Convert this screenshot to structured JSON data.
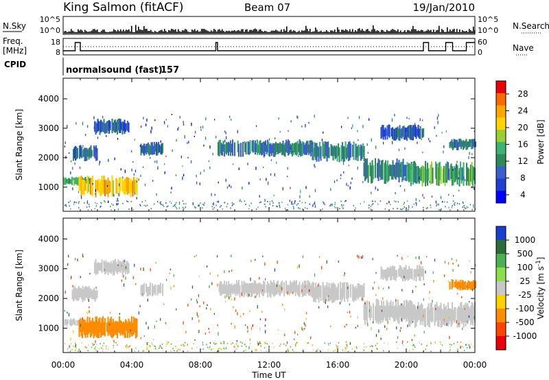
{
  "header": {
    "station": "King Salmon (fitACF)",
    "beam": "Beam 07",
    "date": "19/Jan/2010"
  },
  "strip": {
    "nsky_label": "N.Sky",
    "nsearch_label": "N.Search",
    "noise_ticks": [
      "10^5",
      "10^0"
    ],
    "freq_label_1": "Freq.",
    "freq_label_2": "[MHz]",
    "freq_ticks": [
      "18",
      "8"
    ],
    "nave_label": "Nave",
    "nave_ticks": [
      "60",
      "0"
    ],
    "cpid_label": "CPID",
    "cpid_name": "normalsound (fast)",
    "cpid_number": "157"
  },
  "power_colorbar": {
    "label": "Power [dB]",
    "ticks": [
      "28",
      "24",
      "20",
      "16",
      "12",
      "8",
      "4"
    ],
    "colors": [
      "#e8000b",
      "#ff6a00",
      "#ffa500",
      "#ffd400",
      "#9acd32",
      "#3cb371",
      "#2e8b57",
      "#3a5fcd",
      "#1e3fd0",
      "#0000ff"
    ]
  },
  "velocity_colorbar": {
    "label": "Velocity [m s",
    "label_exp": "-1",
    "label_end": "]",
    "ticks": [
      "1000",
      "500",
      "100",
      "25",
      "-25",
      "-100",
      "-500",
      "-1000"
    ],
    "colors": [
      "#1a3fcf",
      "#2e6b3a",
      "#4caf50",
      "#8ae04a",
      "#c8c8c8",
      "#ffd000",
      "#ff8c00",
      "#ff4500",
      "#e8000b"
    ]
  },
  "chart_data": [
    {
      "type": "heatmap",
      "title": "Power",
      "xlabel": "Time UT",
      "ylabel": "Slant Range [km]",
      "x_ticks": [
        "00:00",
        "04:00",
        "08:00",
        "12:00",
        "16:00",
        "20:00",
        "00:00"
      ],
      "x_range_hours": [
        0,
        24
      ],
      "y_ticks": [
        1000,
        2000,
        3000,
        4000
      ],
      "ylim": [
        180,
        4700
      ],
      "colorbar_range_db": [
        0,
        30
      ],
      "echo_bands": [
        {
          "start": 0.0,
          "end": 1.6,
          "range_low": 1000,
          "range_high": 1400,
          "power": 12
        },
        {
          "start": 0.9,
          "end": 4.3,
          "range_low": 550,
          "range_high": 1500,
          "power": 22
        },
        {
          "start": 0.5,
          "end": 2.0,
          "range_low": 1800,
          "range_high": 2500,
          "power": 8
        },
        {
          "start": 1.8,
          "end": 3.8,
          "range_low": 2700,
          "range_high": 3400,
          "power": 6
        },
        {
          "start": 4.5,
          "end": 5.8,
          "range_low": 2000,
          "range_high": 2600,
          "power": 7
        },
        {
          "start": 9.0,
          "end": 14.5,
          "range_low": 1950,
          "range_high": 2700,
          "power": 9
        },
        {
          "start": 14.5,
          "end": 17.5,
          "range_low": 1750,
          "range_high": 2650,
          "power": 9
        },
        {
          "start": 17.5,
          "end": 20.5,
          "range_low": 1000,
          "range_high": 2100,
          "power": 10
        },
        {
          "start": 18.5,
          "end": 21.0,
          "range_low": 2500,
          "range_high": 3200,
          "power": 6
        },
        {
          "start": 20.0,
          "end": 24.0,
          "range_low": 900,
          "range_high": 2000,
          "power": 12
        },
        {
          "start": 22.5,
          "end": 24.0,
          "range_low": 2200,
          "range_high": 2700,
          "power": 8
        }
      ]
    },
    {
      "type": "heatmap",
      "title": "Velocity",
      "xlabel": "Time UT",
      "ylabel": "Slant Range [km]",
      "x_ticks": [
        "00:00",
        "04:00",
        "08:00",
        "12:00",
        "16:00",
        "20:00",
        "00:00"
      ],
      "x_range_hours": [
        0,
        24
      ],
      "y_ticks": [
        1000,
        2000,
        3000,
        4000
      ],
      "ylim": [
        180,
        4700
      ],
      "echo_bands": [
        {
          "start": 0.0,
          "end": 1.6,
          "range_low": 1000,
          "range_high": 1400,
          "velocity": 0
        },
        {
          "start": 0.9,
          "end": 4.3,
          "range_low": 550,
          "range_high": 1500,
          "velocity": -150
        },
        {
          "start": 0.5,
          "end": 2.0,
          "range_low": 1800,
          "range_high": 2500,
          "velocity": 0
        },
        {
          "start": 1.8,
          "end": 3.8,
          "range_low": 2700,
          "range_high": 3400,
          "velocity": 0
        },
        {
          "start": 4.5,
          "end": 5.8,
          "range_low": 2000,
          "range_high": 2600,
          "velocity": 0
        },
        {
          "start": 9.0,
          "end": 14.5,
          "range_low": 1950,
          "range_high": 2700,
          "velocity": 0
        },
        {
          "start": 14.5,
          "end": 17.5,
          "range_low": 1750,
          "range_high": 2650,
          "velocity": 0
        },
        {
          "start": 17.5,
          "end": 20.5,
          "range_low": 1000,
          "range_high": 2100,
          "velocity": 0
        },
        {
          "start": 18.5,
          "end": 21.0,
          "range_low": 2500,
          "range_high": 3200,
          "velocity": 0
        },
        {
          "start": 20.0,
          "end": 24.0,
          "range_low": 900,
          "range_high": 2000,
          "velocity": 0
        },
        {
          "start": 22.5,
          "end": 24.0,
          "range_low": 2200,
          "range_high": 2700,
          "velocity": -150
        }
      ]
    }
  ]
}
